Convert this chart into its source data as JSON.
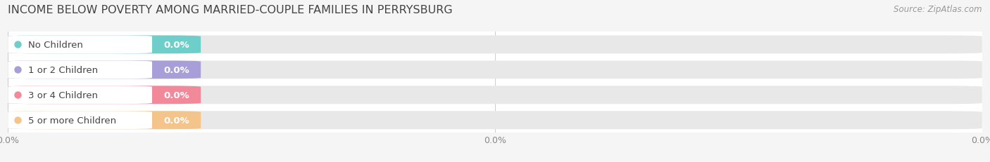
{
  "title": "INCOME BELOW POVERTY AMONG MARRIED-COUPLE FAMILIES IN PERRYSBURG",
  "source": "Source: ZipAtlas.com",
  "categories": [
    "No Children",
    "1 or 2 Children",
    "3 or 4 Children",
    "5 or more Children"
  ],
  "values": [
    0.0,
    0.0,
    0.0,
    0.0
  ],
  "bar_colors": [
    "#6ecfca",
    "#a89fd8",
    "#f2899b",
    "#f5c48a"
  ],
  "background_color": "#f5f5f5",
  "row_bg_color": "#ffffff",
  "title_fontsize": 11.5,
  "source_fontsize": 8.5,
  "label_fontsize": 9.5,
  "value_fontsize": 9.5,
  "tick_fontsize": 9,
  "figsize": [
    14.06,
    2.32
  ],
  "dpi": 100
}
